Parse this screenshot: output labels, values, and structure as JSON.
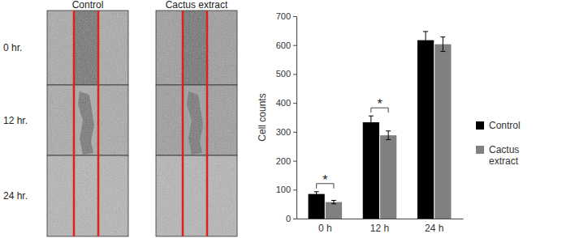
{
  "chart_data": {
    "type": "bar",
    "y_label": "Cell counts",
    "categories": [
      "0 h",
      "12 h",
      "24 h"
    ],
    "series": [
      {
        "name": "Control",
        "color": "#000000",
        "values": [
          85,
          333,
          617
        ],
        "errors": [
          8,
          22,
          30
        ]
      },
      {
        "name": "Cactus extract",
        "color": "#808080",
        "values": [
          57,
          288,
          603
        ],
        "errors": [
          6,
          15,
          25
        ]
      }
    ],
    "ylim": [
      0,
      700
    ],
    "yticks": [
      0,
      100,
      200,
      300,
      400,
      500,
      600,
      700
    ],
    "grid": false,
    "legend": "right",
    "significance": [
      {
        "category": "0 h",
        "label": "*"
      },
      {
        "category": "12 h",
        "label": "*"
      }
    ]
  },
  "image_panel": {
    "columns": [
      "Control",
      "Cactus extract"
    ],
    "rows": [
      "0 hr.",
      "12 hr.",
      "24 hr."
    ]
  }
}
